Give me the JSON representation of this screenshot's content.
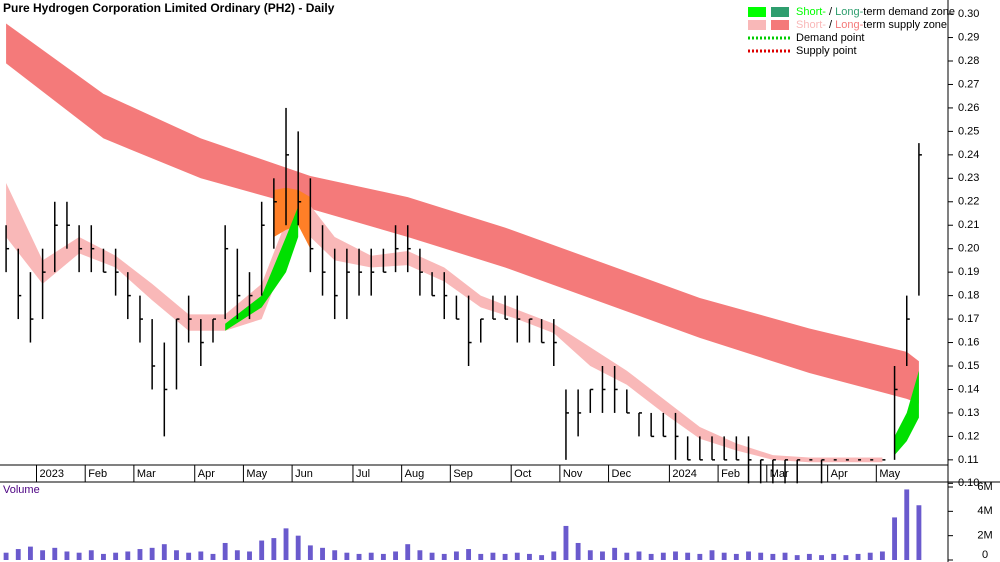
{
  "chart_data": {
    "type": "ohlc",
    "title": "Pure Hydrogen Corporation Limited Ordinary (PH2) - Daily",
    "color": "#000000",
    "categories": [
      null,
      null,
      null,
      "2023",
      null,
      null,
      null,
      "Feb",
      null,
      null,
      null,
      "Mar",
      null,
      null,
      null,
      null,
      "Apr",
      null,
      null,
      null,
      "May",
      null,
      null,
      null,
      "Jun",
      null,
      null,
      null,
      null,
      "Jul",
      null,
      null,
      null,
      "Aug",
      null,
      null,
      null,
      "Sep",
      null,
      null,
      null,
      null,
      "Oct",
      null,
      null,
      null,
      "Nov",
      null,
      null,
      null,
      "Dec",
      null,
      null,
      null,
      null,
      "2024",
      null,
      null,
      null,
      "Feb",
      null,
      null,
      null,
      "Mar",
      null,
      null,
      null,
      null,
      "Apr",
      null,
      null,
      null,
      "May",
      null,
      null,
      null
    ],
    "high": [
      0.21,
      0.2,
      0.19,
      0.2,
      0.22,
      0.22,
      0.21,
      0.21,
      0.2,
      0.2,
      0.19,
      0.18,
      0.17,
      0.16,
      0.17,
      0.18,
      0.17,
      0.17,
      0.21,
      0.2,
      0.19,
      0.22,
      0.23,
      0.26,
      0.25,
      0.23,
      0.21,
      0.2,
      0.2,
      0.2,
      0.2,
      0.2,
      0.21,
      0.21,
      0.2,
      0.19,
      0.19,
      0.18,
      0.18,
      0.17,
      0.18,
      0.18,
      0.18,
      0.17,
      0.17,
      0.17,
      0.14,
      0.14,
      0.14,
      0.15,
      0.15,
      0.14,
      0.13,
      0.13,
      0.13,
      0.13,
      0.12,
      0.12,
      0.12,
      0.12,
      0.12,
      0.12,
      0.11,
      0.11,
      0.11,
      0.11,
      0.11,
      0.11,
      0.11,
      0.11,
      0.11,
      0.11,
      0.11,
      0.15,
      0.18,
      0.245
    ],
    "low": [
      0.19,
      0.17,
      0.16,
      0.17,
      0.19,
      0.2,
      0.19,
      0.19,
      0.19,
      0.18,
      0.17,
      0.16,
      0.14,
      0.12,
      0.14,
      0.16,
      0.15,
      0.16,
      0.17,
      0.17,
      0.17,
      0.18,
      0.2,
      0.21,
      0.21,
      0.19,
      0.18,
      0.17,
      0.17,
      0.18,
      0.18,
      0.19,
      0.19,
      0.19,
      0.18,
      0.18,
      0.17,
      0.17,
      0.15,
      0.16,
      0.17,
      0.17,
      0.16,
      0.16,
      0.16,
      0.15,
      0.11,
      0.12,
      0.13,
      0.13,
      0.13,
      0.13,
      0.12,
      0.12,
      0.12,
      0.11,
      0.11,
      0.11,
      0.11,
      0.11,
      0.11,
      0.1,
      0.1,
      0.1,
      0.1,
      0.1,
      0.11,
      0.1,
      0.11,
      0.11,
      0.11,
      0.11,
      0.11,
      0.11,
      0.15,
      0.18
    ],
    "close": [
      0.2,
      0.18,
      0.17,
      0.19,
      0.21,
      0.21,
      0.2,
      0.2,
      0.19,
      0.19,
      0.18,
      0.17,
      0.15,
      0.14,
      0.17,
      0.17,
      0.16,
      0.17,
      0.2,
      0.18,
      0.18,
      0.21,
      0.22,
      0.24,
      0.22,
      0.2,
      0.19,
      0.18,
      0.19,
      0.19,
      0.19,
      0.19,
      0.2,
      0.2,
      0.19,
      0.18,
      0.18,
      0.17,
      0.16,
      0.17,
      0.17,
      0.17,
      0.17,
      0.17,
      0.16,
      0.16,
      0.13,
      0.13,
      0.14,
      0.14,
      0.14,
      0.13,
      0.13,
      0.12,
      0.12,
      0.12,
      0.11,
      0.11,
      0.11,
      0.11,
      0.11,
      0.11,
      0.11,
      0.11,
      0.11,
      0.11,
      0.11,
      0.11,
      0.11,
      0.11,
      0.11,
      0.11,
      0.11,
      0.14,
      0.17,
      0.24
    ],
    "ylim": [
      0.098,
      0.306
    ],
    "yticks": [
      {
        "value": 0.1,
        "label": "0.10"
      },
      {
        "value": 0.11,
        "label": "0.11"
      },
      {
        "value": 0.12,
        "label": "0.12"
      },
      {
        "value": 0.13,
        "label": "0.13"
      },
      {
        "value": 0.14,
        "label": "0.14"
      },
      {
        "value": 0.15,
        "label": "0.15"
      },
      {
        "value": 0.16,
        "label": "0.16"
      },
      {
        "value": 0.17,
        "label": "0.17"
      },
      {
        "value": 0.18,
        "label": "0.18"
      },
      {
        "value": 0.19,
        "label": "0.19"
      },
      {
        "value": 0.2,
        "label": "0.20"
      },
      {
        "value": 0.21,
        "label": "0.21"
      },
      {
        "value": 0.22,
        "label": "0.22"
      },
      {
        "value": 0.23,
        "label": "0.23"
      },
      {
        "value": 0.24,
        "label": "0.24"
      },
      {
        "value": 0.25,
        "label": "0.25"
      },
      {
        "value": 0.26,
        "label": "0.26"
      },
      {
        "value": 0.27,
        "label": "0.27"
      },
      {
        "value": 0.28,
        "label": "0.28"
      },
      {
        "value": 0.29,
        "label": "0.29"
      },
      {
        "value": 0.3,
        "label": "0.30"
      }
    ],
    "zones": [
      {
        "color": "#f47a7a",
        "x": [
          0,
          8,
          16,
          25,
          33,
          41,
          49,
          57,
          66,
          74,
          75
        ],
        "upper": [
          0.296,
          0.266,
          0.247,
          0.231,
          0.222,
          0.209,
          0.194,
          0.179,
          0.166,
          0.156,
          0.152
        ],
        "lower": [
          0.279,
          0.247,
          0.23,
          0.217,
          0.205,
          0.192,
          0.177,
          0.162,
          0.147,
          0.136,
          0.134
        ]
      },
      {
        "color": "#f9b8b8",
        "x": [
          0,
          3,
          6,
          9,
          12,
          15,
          18,
          21,
          24,
          27,
          30,
          33,
          36,
          39,
          42,
          45,
          48,
          51,
          54,
          57,
          60,
          63,
          66,
          69,
          72
        ],
        "upper": [
          0.228,
          0.195,
          0.205,
          0.197,
          0.185,
          0.172,
          0.172,
          0.185,
          0.225,
          0.205,
          0.197,
          0.199,
          0.192,
          0.18,
          0.174,
          0.168,
          0.158,
          0.148,
          0.136,
          0.124,
          0.117,
          0.112,
          0.111,
          0.111,
          0.111
        ],
        "lower": [
          0.205,
          0.185,
          0.198,
          0.192,
          0.178,
          0.165,
          0.165,
          0.17,
          0.21,
          0.195,
          0.192,
          0.193,
          0.186,
          0.175,
          0.17,
          0.164,
          0.15,
          0.142,
          0.13,
          0.119,
          0.114,
          0.11,
          0.109,
          0.109,
          0.109
        ]
      },
      {
        "color": "#ff7f27",
        "x": [
          22,
          23,
          24,
          25
        ],
        "upper": [
          0.225,
          0.226,
          0.225,
          0.222
        ],
        "lower": [
          0.205,
          0.208,
          0.21,
          0.2
        ]
      },
      {
        "color": "#00e000",
        "x": [
          18,
          21,
          23,
          24
        ],
        "upper": [
          0.168,
          0.18,
          0.205,
          0.218
        ],
        "lower": [
          0.165,
          0.175,
          0.19,
          0.205
        ]
      },
      {
        "color": "#00e000",
        "x": [
          73,
          74,
          75
        ],
        "upper": [
          0.12,
          0.13,
          0.148
        ],
        "lower": [
          0.112,
          0.118,
          0.128
        ]
      }
    ],
    "legend": [
      {
        "short": "Short-",
        "sep": " / ",
        "long": "Long-",
        "rest": "term demand zone",
        "colors": [
          "#00ff00",
          "#2e9e6e"
        ],
        "style": "zone"
      },
      {
        "short": "Short-",
        "sep": " / ",
        "long": "Long-",
        "rest": "term supply zone",
        "colors": [
          "#f9b8b8",
          "#f47a7a"
        ],
        "style": "zone"
      },
      {
        "label": "Demand point",
        "colors": [
          "#00cc00"
        ],
        "style": "dotted"
      },
      {
        "label": "Supply point",
        "colors": [
          "#dd0000"
        ],
        "style": "dotted"
      }
    ],
    "volume": {
      "label": "Volume",
      "color": "#6a5acd",
      "values": [
        600000,
        900000,
        1100000,
        800000,
        1000000,
        700000,
        600000,
        800000,
        500000,
        600000,
        700000,
        900000,
        1000000,
        1300000,
        800000,
        600000,
        700000,
        500000,
        1400000,
        800000,
        700000,
        1600000,
        1800000,
        2600000,
        2000000,
        1200000,
        1000000,
        800000,
        600000,
        500000,
        600000,
        500000,
        700000,
        1300000,
        800000,
        600000,
        500000,
        700000,
        900000,
        500000,
        600000,
        500000,
        600000,
        500000,
        400000,
        700000,
        2800000,
        1400000,
        800000,
        700000,
        1000000,
        600000,
        700000,
        500000,
        600000,
        700000,
        600000,
        500000,
        800000,
        600000,
        500000,
        700000,
        600000,
        500000,
        600000,
        400000,
        500000,
        400000,
        500000,
        400000,
        500000,
        600000,
        700000,
        3500000,
        5800000,
        4500000
      ],
      "ylim": [
        0,
        6000000
      ],
      "yticks": [
        0,
        {
          "value": 2000000,
          "label": "2M"
        },
        {
          "value": 4000000,
          "label": "4M"
        },
        {
          "value": 6000000,
          "label": "6M"
        }
      ]
    }
  }
}
